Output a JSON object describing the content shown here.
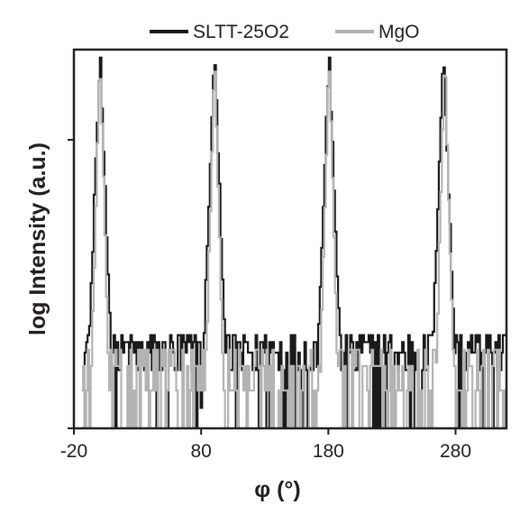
{
  "chart_data": {
    "type": "line",
    "title": "",
    "xlabel": "φ (°)",
    "ylabel": "log Intensity (a.u.)",
    "xlim": [
      -20,
      320
    ],
    "ylim": [
      0,
      1.0
    ],
    "xticks": [
      -20,
      80,
      180,
      280
    ],
    "xtick_labels": [
      "-20",
      "80",
      "180",
      "280"
    ],
    "yticks": [
      0,
      1.0
    ],
    "ytick_labels": [],
    "grid": false,
    "legend_position": "top-center",
    "series": [
      {
        "name": "SLTT-25O2",
        "color": "#1a1a1a",
        "peaks": [
          0,
          90,
          180,
          270
        ],
        "peak_value": 1.29,
        "background_level": 0.26,
        "noise_amplitude": 0.06,
        "peak_halfwidth_deg": 11
      },
      {
        "name": "MgO",
        "color": "#b3b3b3",
        "peaks": [
          0,
          90,
          180,
          271
        ],
        "peak_value": 1.29,
        "background_level": 0.13,
        "noise_amplitude": 0.14,
        "peak_halfwidth_deg": 8
      }
    ]
  }
}
